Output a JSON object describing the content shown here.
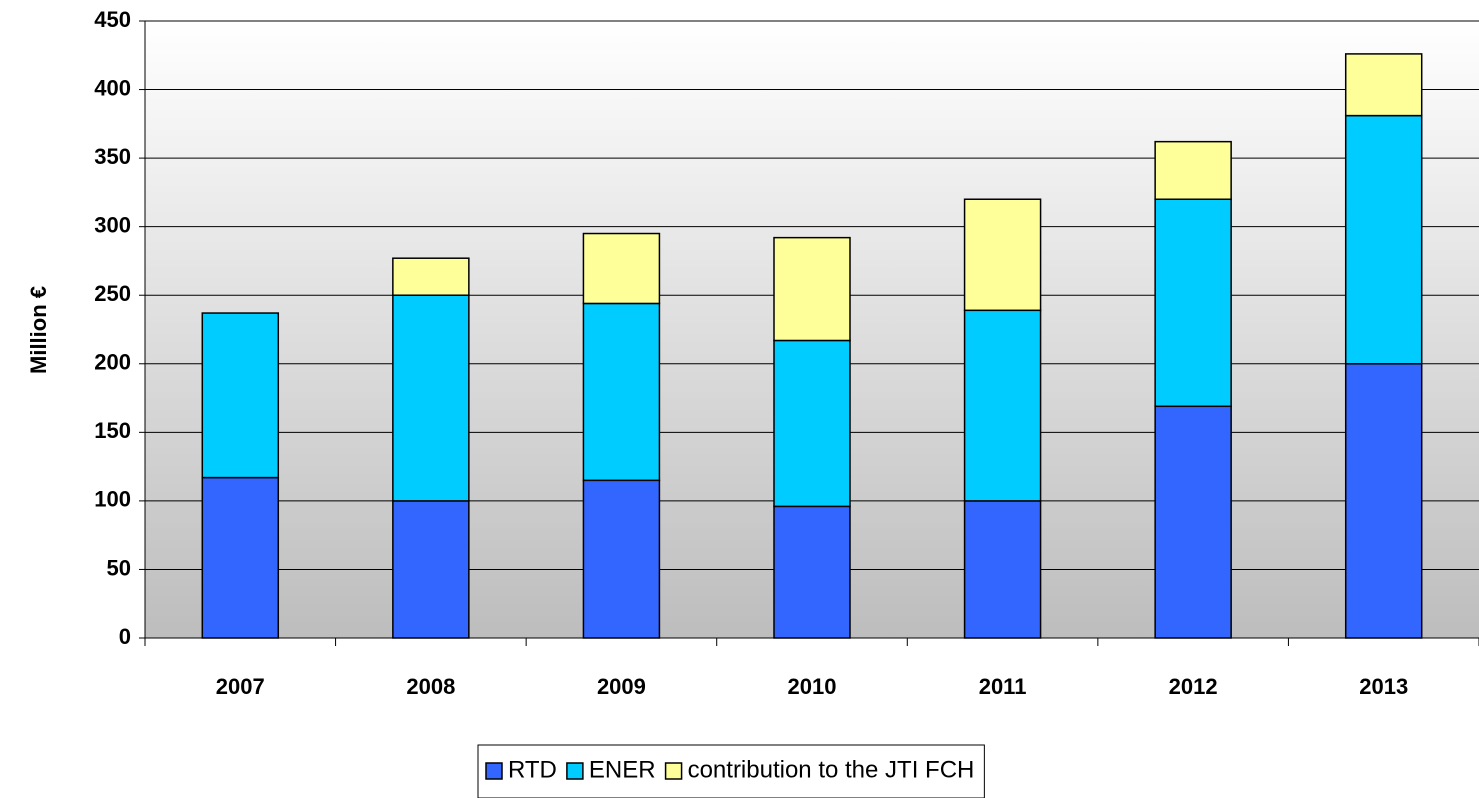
{
  "chart_data": {
    "type": "stacked_bar",
    "y_label": "Million €",
    "categories": [
      "2007",
      "2008",
      "2009",
      "2010",
      "2011",
      "2012",
      "2013"
    ],
    "series": [
      {
        "name": "RTD",
        "color": "#3366ff",
        "values": [
          117,
          100,
          115,
          96,
          100,
          169,
          200
        ]
      },
      {
        "name": "ENER",
        "color": "#00ccff",
        "values": [
          120,
          150,
          129,
          121,
          139,
          151,
          181
        ]
      },
      {
        "name": "contribution to the JTI FCH",
        "color": "#ffff99",
        "values": [
          0,
          27,
          51,
          75,
          81,
          42,
          45
        ]
      }
    ],
    "ylim": [
      0,
      450
    ],
    "yticks": [
      0,
      50,
      100,
      150,
      200,
      250,
      300,
      350,
      400,
      450
    ],
    "grid": true,
    "legend": "bottom"
  }
}
